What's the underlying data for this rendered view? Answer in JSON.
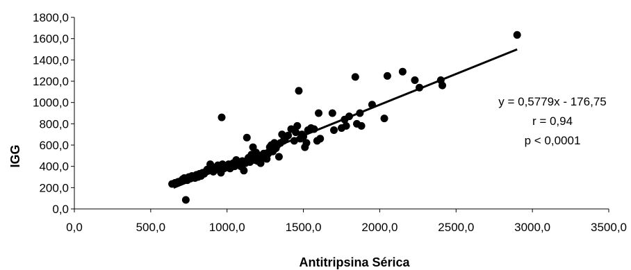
{
  "chart_data": {
    "type": "scatter",
    "title": "",
    "xlabel": "Antitripsina Sérica",
    "ylabel": "IGG",
    "xlim": [
      0,
      3500
    ],
    "ylim": [
      0,
      1800
    ],
    "x_ticks": [
      0,
      500,
      1000,
      1500,
      2000,
      2500,
      3000,
      3500
    ],
    "x_tick_labels": [
      "0,0",
      "500,0",
      "1000,0",
      "1500,0",
      "2000,0",
      "2500,0",
      "3000,0",
      "3500,0"
    ],
    "y_ticks": [
      0,
      200,
      400,
      600,
      800,
      1000,
      1200,
      1400,
      1600,
      1800
    ],
    "y_tick_labels": [
      "0,0",
      "200,0",
      "400,0",
      "600,0",
      "800,0",
      "1000,0",
      "1200,0",
      "1400,0",
      "1600,0",
      "1800,0"
    ],
    "grid": false,
    "legend": "none",
    "trendline": {
      "type": "linear",
      "slope": 0.5779,
      "intercept": -176.75,
      "x_range": [
        650,
        2900
      ]
    },
    "annotations": [
      "y = 0,5779x - 176,75",
      "r = 0,94",
      "p < 0,0001"
    ],
    "points": [
      [
        640,
        235
      ],
      [
        660,
        245
      ],
      [
        680,
        255
      ],
      [
        700,
        265
      ],
      [
        710,
        280
      ],
      [
        720,
        290
      ],
      [
        730,
        85
      ],
      [
        740,
        270
      ],
      [
        750,
        300
      ],
      [
        760,
        285
      ],
      [
        770,
        310
      ],
      [
        780,
        300
      ],
      [
        790,
        290
      ],
      [
        800,
        320
      ],
      [
        810,
        300
      ],
      [
        820,
        330
      ],
      [
        830,
        310
      ],
      [
        840,
        340
      ],
      [
        850,
        330
      ],
      [
        860,
        350
      ],
      [
        870,
        370
      ],
      [
        880,
        360
      ],
      [
        890,
        420
      ],
      [
        900,
        380
      ],
      [
        910,
        350
      ],
      [
        920,
        390
      ],
      [
        930,
        370
      ],
      [
        940,
        410
      ],
      [
        950,
        400
      ],
      [
        960,
        340
      ],
      [
        965,
        860
      ],
      [
        970,
        420
      ],
      [
        980,
        380
      ],
      [
        990,
        400
      ],
      [
        1000,
        390
      ],
      [
        1010,
        420
      ],
      [
        1020,
        380
      ],
      [
        1030,
        410
      ],
      [
        1040,
        430
      ],
      [
        1050,
        400
      ],
      [
        1060,
        460
      ],
      [
        1070,
        420
      ],
      [
        1080,
        440
      ],
      [
        1090,
        400
      ],
      [
        1100,
        450
      ],
      [
        1110,
        360
      ],
      [
        1120,
        430
      ],
      [
        1130,
        670
      ],
      [
        1140,
        480
      ],
      [
        1150,
        440
      ],
      [
        1160,
        510
      ],
      [
        1170,
        580
      ],
      [
        1180,
        460
      ],
      [
        1190,
        530
      ],
      [
        1200,
        450
      ],
      [
        1210,
        490
      ],
      [
        1220,
        430
      ],
      [
        1230,
        480
      ],
      [
        1240,
        520
      ],
      [
        1250,
        500
      ],
      [
        1260,
        470
      ],
      [
        1270,
        520
      ],
      [
        1280,
        580
      ],
      [
        1290,
        600
      ],
      [
        1300,
        540
      ],
      [
        1310,
        620
      ],
      [
        1320,
        570
      ],
      [
        1330,
        600
      ],
      [
        1340,
        490
      ],
      [
        1350,
        620
      ],
      [
        1360,
        700
      ],
      [
        1370,
        640
      ],
      [
        1380,
        660
      ],
      [
        1400,
        690
      ],
      [
        1420,
        750
      ],
      [
        1440,
        640
      ],
      [
        1450,
        720
      ],
      [
        1460,
        780
      ],
      [
        1470,
        1110
      ],
      [
        1480,
        660
      ],
      [
        1490,
        700
      ],
      [
        1500,
        680
      ],
      [
        1510,
        580
      ],
      [
        1520,
        620
      ],
      [
        1530,
        740
      ],
      [
        1550,
        760
      ],
      [
        1570,
        750
      ],
      [
        1590,
        640
      ],
      [
        1600,
        900
      ],
      [
        1610,
        660
      ],
      [
        1690,
        900
      ],
      [
        1700,
        740
      ],
      [
        1750,
        760
      ],
      [
        1770,
        840
      ],
      [
        1780,
        780
      ],
      [
        1800,
        870
      ],
      [
        1840,
        1240
      ],
      [
        1850,
        800
      ],
      [
        1870,
        900
      ],
      [
        1880,
        780
      ],
      [
        1950,
        980
      ],
      [
        2030,
        850
      ],
      [
        2050,
        1250
      ],
      [
        2150,
        1290
      ],
      [
        2230,
        1210
      ],
      [
        2260,
        1140
      ],
      [
        2400,
        1210
      ],
      [
        2410,
        1160
      ],
      [
        2900,
        1635
      ]
    ]
  }
}
